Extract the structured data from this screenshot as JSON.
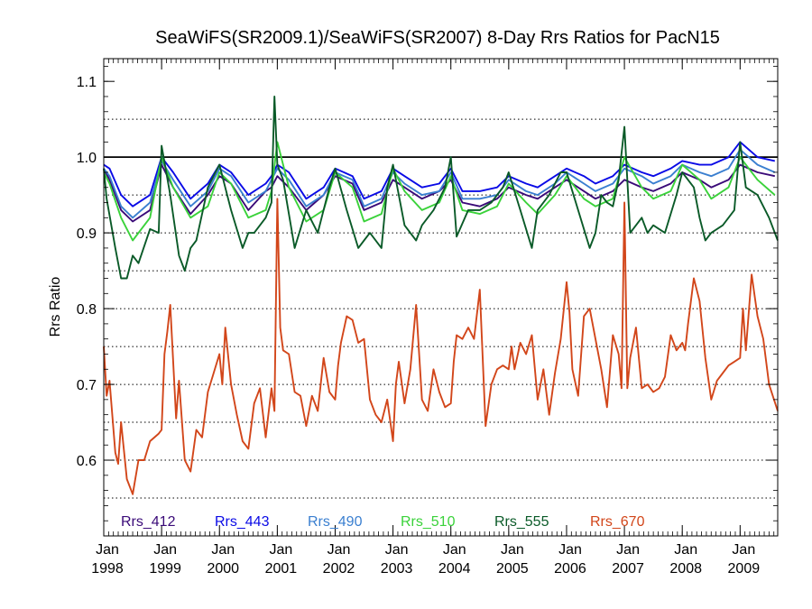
{
  "chart_data": {
    "type": "line",
    "title": "SeaWiFS(SR2009.1)/SeaWiFS(SR2007) 8-Day Rrs Ratios for PacN15",
    "xlabel": "",
    "ylabel": "Rrs Ratio",
    "xlim": [
      1998.0,
      2009.65
    ],
    "ylim": [
      0.5,
      1.13
    ],
    "x_ticks": [
      {
        "month": "Jan",
        "year": "1998",
        "value": 1998.0
      },
      {
        "month": "Jan",
        "year": "1999",
        "value": 1999.0
      },
      {
        "month": "Jan",
        "year": "2000",
        "value": 2000.0
      },
      {
        "month": "Jan",
        "year": "2001",
        "value": 2001.0
      },
      {
        "month": "Jan",
        "year": "2002",
        "value": 2002.0
      },
      {
        "month": "Jan",
        "year": "2003",
        "value": 2003.0
      },
      {
        "month": "Jan",
        "year": "2004",
        "value": 2004.0
      },
      {
        "month": "Jan",
        "year": "2005",
        "value": 2005.0
      },
      {
        "month": "Jan",
        "year": "2006",
        "value": 2006.0
      },
      {
        "month": "Jan",
        "year": "2007",
        "value": 2007.0
      },
      {
        "month": "Jan",
        "year": "2008",
        "value": 2008.0
      },
      {
        "month": "Jan",
        "year": "2009",
        "value": 2009.0
      }
    ],
    "y_ticks": [
      {
        "label": "0.6",
        "value": 0.6
      },
      {
        "label": "0.7",
        "value": 0.7
      },
      {
        "label": "0.8",
        "value": 0.8
      },
      {
        "label": "0.9",
        "value": 0.9
      },
      {
        "label": "1.0",
        "value": 1.0
      },
      {
        "label": "1.1",
        "value": 1.1
      }
    ],
    "dotted_gridlines_y": [
      0.55,
      0.6,
      0.65,
      0.7,
      0.75,
      0.8,
      0.85,
      0.9,
      0.95,
      1.05
    ],
    "reference_line_y": 1.0,
    "legend_position": "bottom",
    "series": [
      {
        "name": "Rrs_412",
        "color": "#3a0a78",
        "x": [
          1998.0,
          1998.1,
          1998.3,
          1998.5,
          1998.8,
          1999.0,
          1999.2,
          1999.5,
          1999.8,
          2000.0,
          2000.2,
          2000.5,
          2000.8,
          2000.9,
          2001.0,
          2001.2,
          2001.5,
          2001.8,
          2002.0,
          2002.3,
          2002.5,
          2002.8,
          2003.0,
          2003.2,
          2003.5,
          2003.8,
          2004.0,
          2004.2,
          2004.5,
          2004.8,
          2005.0,
          2005.3,
          2005.5,
          2005.8,
          2006.0,
          2006.3,
          2006.5,
          2006.8,
          2007.0,
          2007.3,
          2007.5,
          2007.8,
          2008.0,
          2008.3,
          2008.5,
          2008.8,
          2009.0,
          2009.3,
          2009.6
        ],
        "y": [
          0.985,
          0.97,
          0.93,
          0.915,
          0.93,
          0.99,
          0.96,
          0.925,
          0.95,
          0.975,
          0.965,
          0.93,
          0.955,
          0.96,
          0.975,
          0.96,
          0.93,
          0.95,
          0.975,
          0.965,
          0.93,
          0.94,
          0.97,
          0.96,
          0.945,
          0.955,
          0.97,
          0.94,
          0.935,
          0.945,
          0.96,
          0.95,
          0.945,
          0.96,
          0.97,
          0.955,
          0.945,
          0.955,
          0.97,
          0.96,
          0.955,
          0.965,
          0.98,
          0.97,
          0.96,
          0.97,
          0.99,
          0.98,
          0.975
        ]
      },
      {
        "name": "Rrs_443",
        "color": "#0a0ae6",
        "x": [
          1998.0,
          1998.1,
          1998.3,
          1998.5,
          1998.8,
          1999.0,
          1999.2,
          1999.5,
          1999.8,
          2000.0,
          2000.2,
          2000.5,
          2000.8,
          2000.9,
          2001.0,
          2001.2,
          2001.5,
          2001.8,
          2002.0,
          2002.3,
          2002.5,
          2002.8,
          2003.0,
          2003.2,
          2003.5,
          2003.8,
          2004.0,
          2004.2,
          2004.5,
          2004.8,
          2005.0,
          2005.3,
          2005.5,
          2005.8,
          2006.0,
          2006.3,
          2006.5,
          2006.8,
          2007.0,
          2007.3,
          2007.5,
          2007.8,
          2008.0,
          2008.3,
          2008.5,
          2008.8,
          2009.0,
          2009.3,
          2009.6
        ],
        "y": [
          0.99,
          0.985,
          0.95,
          0.935,
          0.95,
          1.0,
          0.98,
          0.945,
          0.965,
          0.99,
          0.98,
          0.95,
          0.965,
          0.975,
          0.99,
          0.98,
          0.945,
          0.96,
          0.985,
          0.975,
          0.945,
          0.955,
          0.985,
          0.975,
          0.96,
          0.965,
          0.985,
          0.955,
          0.955,
          0.96,
          0.975,
          0.965,
          0.96,
          0.975,
          0.985,
          0.975,
          0.965,
          0.975,
          0.99,
          0.98,
          0.975,
          0.985,
          0.995,
          0.99,
          0.99,
          1.0,
          1.02,
          1.0,
          0.995
        ]
      },
      {
        "name": "Rrs_490",
        "color": "#3a7fd0",
        "x": [
          1998.0,
          1998.1,
          1998.3,
          1998.5,
          1998.8,
          1999.0,
          1999.2,
          1999.5,
          1999.8,
          2000.0,
          2000.2,
          2000.5,
          2000.8,
          2000.9,
          2001.0,
          2001.2,
          2001.5,
          2001.8,
          2002.0,
          2002.3,
          2002.5,
          2002.8,
          2003.0,
          2003.2,
          2003.5,
          2003.8,
          2004.0,
          2004.2,
          2004.5,
          2004.8,
          2005.0,
          2005.3,
          2005.5,
          2005.8,
          2006.0,
          2006.3,
          2006.5,
          2006.8,
          2007.0,
          2007.3,
          2007.5,
          2007.8,
          2008.0,
          2008.3,
          2008.5,
          2008.8,
          2009.0,
          2009.3,
          2009.6
        ],
        "y": [
          0.985,
          0.975,
          0.935,
          0.92,
          0.94,
          0.995,
          0.97,
          0.935,
          0.955,
          0.985,
          0.975,
          0.94,
          0.955,
          0.97,
          0.985,
          0.97,
          0.935,
          0.95,
          0.98,
          0.97,
          0.935,
          0.945,
          0.98,
          0.965,
          0.95,
          0.955,
          0.98,
          0.945,
          0.945,
          0.95,
          0.97,
          0.955,
          0.95,
          0.965,
          0.98,
          0.965,
          0.955,
          0.965,
          0.985,
          0.975,
          0.965,
          0.975,
          0.99,
          0.98,
          0.975,
          0.985,
          1.01,
          0.99,
          0.98
        ]
      },
      {
        "name": "Rrs_510",
        "color": "#3ad23a",
        "x": [
          1998.0,
          1998.1,
          1998.3,
          1998.5,
          1998.8,
          1999.0,
          1999.2,
          1999.5,
          1999.8,
          2000.0,
          2000.2,
          2000.5,
          2000.8,
          2000.9,
          2001.0,
          2001.2,
          2001.5,
          2001.8,
          2002.0,
          2002.3,
          2002.5,
          2002.8,
          2003.0,
          2003.2,
          2003.5,
          2003.8,
          2004.0,
          2004.2,
          2004.5,
          2004.8,
          2005.0,
          2005.3,
          2005.5,
          2005.8,
          2006.0,
          2006.3,
          2006.5,
          2006.8,
          2007.0,
          2007.3,
          2007.5,
          2007.8,
          2008.0,
          2008.3,
          2008.5,
          2008.8,
          2009.0,
          2009.3,
          2009.6
        ],
        "y": [
          0.98,
          0.965,
          0.92,
          0.89,
          0.92,
          1.0,
          0.96,
          0.92,
          0.935,
          0.98,
          0.965,
          0.92,
          0.93,
          0.955,
          1.02,
          0.96,
          0.915,
          0.93,
          0.98,
          0.96,
          0.915,
          0.925,
          0.985,
          0.955,
          0.93,
          0.94,
          0.975,
          0.93,
          0.925,
          0.935,
          0.965,
          0.94,
          0.925,
          0.95,
          0.975,
          0.945,
          0.935,
          0.945,
          1.0,
          0.96,
          0.945,
          0.955,
          0.99,
          0.97,
          0.945,
          0.96,
          1.0,
          0.97,
          0.95
        ]
      },
      {
        "name": "Rrs_555",
        "color": "#0a5a28",
        "x": [
          1998.0,
          1998.05,
          1998.2,
          1998.3,
          1998.4,
          1998.5,
          1998.6,
          1998.8,
          1998.95,
          1999.0,
          1999.15,
          1999.3,
          1999.4,
          1999.5,
          1999.6,
          1999.8,
          2000.0,
          2000.2,
          2000.4,
          2000.5,
          2000.6,
          2000.8,
          2000.9,
          2000.95,
          2001.0,
          2001.1,
          2001.3,
          2001.5,
          2001.7,
          2001.9,
          2002.0,
          2002.2,
          2002.4,
          2002.5,
          2002.6,
          2002.8,
          2002.9,
          2003.0,
          2003.2,
          2003.4,
          2003.5,
          2003.7,
          2003.9,
          2004.0,
          2004.1,
          2004.3,
          2004.5,
          2004.7,
          2004.9,
          2005.0,
          2005.2,
          2005.4,
          2005.5,
          2005.7,
          2005.9,
          2006.0,
          2006.2,
          2006.4,
          2006.5,
          2006.6,
          2006.7,
          2006.8,
          2006.9,
          2007.0,
          2007.1,
          2007.3,
          2007.4,
          2007.5,
          2007.7,
          2007.9,
          2008.0,
          2008.2,
          2008.3,
          2008.4,
          2008.5,
          2008.7,
          2008.9,
          2009.0,
          2009.1,
          2009.3,
          2009.5,
          2009.65
        ],
        "y": [
          0.985,
          0.945,
          0.88,
          0.84,
          0.84,
          0.87,
          0.86,
          0.905,
          0.9,
          1.015,
          0.95,
          0.87,
          0.85,
          0.88,
          0.89,
          0.96,
          0.99,
          0.93,
          0.88,
          0.9,
          0.9,
          0.92,
          0.94,
          1.08,
          0.99,
          0.97,
          0.88,
          0.93,
          0.9,
          0.96,
          0.985,
          0.93,
          0.88,
          0.89,
          0.9,
          0.88,
          0.96,
          0.99,
          0.91,
          0.89,
          0.91,
          0.93,
          0.96,
          1.0,
          0.895,
          0.93,
          0.93,
          0.94,
          0.96,
          0.98,
          0.93,
          0.88,
          0.93,
          0.95,
          0.98,
          0.98,
          0.93,
          0.88,
          0.9,
          0.95,
          0.94,
          0.935,
          0.97,
          1.04,
          0.9,
          0.92,
          0.9,
          0.91,
          0.9,
          0.95,
          0.98,
          0.96,
          0.92,
          0.89,
          0.9,
          0.91,
          0.93,
          1.02,
          0.96,
          0.95,
          0.92,
          0.89
        ]
      },
      {
        "name": "Rrs_670",
        "color": "#d2461a",
        "x": [
          1998.0,
          1998.05,
          1998.1,
          1998.2,
          1998.25,
          1998.3,
          1998.4,
          1998.5,
          1998.6,
          1998.7,
          1998.8,
          1998.95,
          1999.0,
          1999.05,
          1999.1,
          1999.15,
          1999.25,
          1999.3,
          1999.4,
          1999.5,
          1999.6,
          1999.7,
          1999.8,
          1999.9,
          2000.0,
          2000.05,
          2000.1,
          2000.2,
          2000.3,
          2000.4,
          2000.5,
          2000.6,
          2000.7,
          2000.8,
          2000.9,
          2000.95,
          2001.0,
          2001.05,
          2001.1,
          2001.2,
          2001.3,
          2001.4,
          2001.5,
          2001.6,
          2001.7,
          2001.8,
          2001.9,
          2002.0,
          2002.05,
          2002.1,
          2002.2,
          2002.3,
          2002.4,
          2002.5,
          2002.6,
          2002.7,
          2002.8,
          2002.9,
          2003.0,
          2003.05,
          2003.1,
          2003.2,
          2003.3,
          2003.4,
          2003.5,
          2003.6,
          2003.7,
          2003.8,
          2003.9,
          2004.0,
          2004.05,
          2004.1,
          2004.2,
          2004.3,
          2004.4,
          2004.5,
          2004.6,
          2004.7,
          2004.8,
          2004.9,
          2005.0,
          2005.05,
          2005.1,
          2005.2,
          2005.3,
          2005.4,
          2005.5,
          2005.6,
          2005.7,
          2005.8,
          2005.9,
          2006.0,
          2006.05,
          2006.1,
          2006.2,
          2006.3,
          2006.4,
          2006.5,
          2006.6,
          2006.7,
          2006.8,
          2006.9,
          2006.95,
          2007.0,
          2007.05,
          2007.1,
          2007.2,
          2007.3,
          2007.4,
          2007.5,
          2007.6,
          2007.7,
          2007.8,
          2007.9,
          2008.0,
          2008.05,
          2008.1,
          2008.2,
          2008.3,
          2008.4,
          2008.5,
          2008.6,
          2008.7,
          2008.8,
          2008.9,
          2009.0,
          2009.05,
          2009.1,
          2009.2,
          2009.3,
          2009.4,
          2009.5,
          2009.65
        ],
        "y": [
          0.75,
          0.685,
          0.705,
          0.61,
          0.595,
          0.65,
          0.575,
          0.555,
          0.6,
          0.6,
          0.625,
          0.635,
          0.64,
          0.74,
          0.77,
          0.805,
          0.655,
          0.705,
          0.6,
          0.585,
          0.64,
          0.63,
          0.69,
          0.715,
          0.74,
          0.7,
          0.775,
          0.7,
          0.66,
          0.625,
          0.615,
          0.675,
          0.695,
          0.63,
          0.695,
          0.665,
          0.945,
          0.775,
          0.745,
          0.74,
          0.69,
          0.685,
          0.645,
          0.685,
          0.665,
          0.735,
          0.69,
          0.68,
          0.725,
          0.755,
          0.79,
          0.785,
          0.755,
          0.76,
          0.68,
          0.66,
          0.65,
          0.68,
          0.625,
          0.7,
          0.73,
          0.675,
          0.72,
          0.805,
          0.68,
          0.665,
          0.72,
          0.69,
          0.67,
          0.675,
          0.73,
          0.765,
          0.76,
          0.775,
          0.76,
          0.825,
          0.645,
          0.7,
          0.72,
          0.725,
          0.72,
          0.75,
          0.72,
          0.755,
          0.74,
          0.765,
          0.68,
          0.72,
          0.66,
          0.715,
          0.76,
          0.835,
          0.795,
          0.72,
          0.685,
          0.79,
          0.8,
          0.76,
          0.72,
          0.67,
          0.765,
          0.74,
          0.695,
          0.94,
          0.695,
          0.735,
          0.775,
          0.695,
          0.7,
          0.69,
          0.695,
          0.71,
          0.765,
          0.745,
          0.755,
          0.745,
          0.78,
          0.84,
          0.81,
          0.735,
          0.68,
          0.705,
          0.715,
          0.725,
          0.73,
          0.735,
          0.8,
          0.745,
          0.845,
          0.79,
          0.76,
          0.7,
          0.665
        ]
      }
    ]
  }
}
